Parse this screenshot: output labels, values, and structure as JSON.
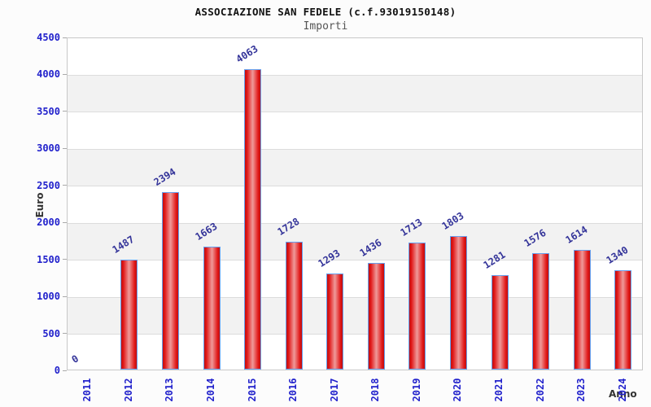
{
  "chart_data": {
    "type": "bar",
    "title": "ASSOCIAZIONE SAN FEDELE (c.f.93019150148)",
    "subtitle": "Importi",
    "xlabel": "Anno",
    "ylabel": "Euro",
    "categories": [
      "2011",
      "2012",
      "2013",
      "2014",
      "2015",
      "2016",
      "2017",
      "2018",
      "2019",
      "2020",
      "2021",
      "2022",
      "2023",
      "2024"
    ],
    "values": [
      0,
      1487,
      2394,
      1663,
      4063,
      1728,
      1293,
      1436,
      1713,
      1803,
      1281,
      1576,
      1614,
      1340
    ],
    "ylim": [
      0,
      4500
    ],
    "ytick_step": 500,
    "grid": "horizontal gridlines every 500 with alternating white/gray bands",
    "legend": "none",
    "value_labels": "above each bar, rotated ~32deg, navy blue",
    "colors": {
      "bar_edge_red": "#c00e0e",
      "bar_center_pink": "#ef9a9a",
      "bar_border_blue": "#66a0ee",
      "axis_tick_label_blue": "#2222cc",
      "value_label_navy": "#333399",
      "axis_title_gray": "#333333",
      "band_gray": "#f2f2f2",
      "gridline_gray": "#dcdcdc",
      "plot_border_gray": "#c8c8c8",
      "background": "#fcfcfc"
    }
  }
}
